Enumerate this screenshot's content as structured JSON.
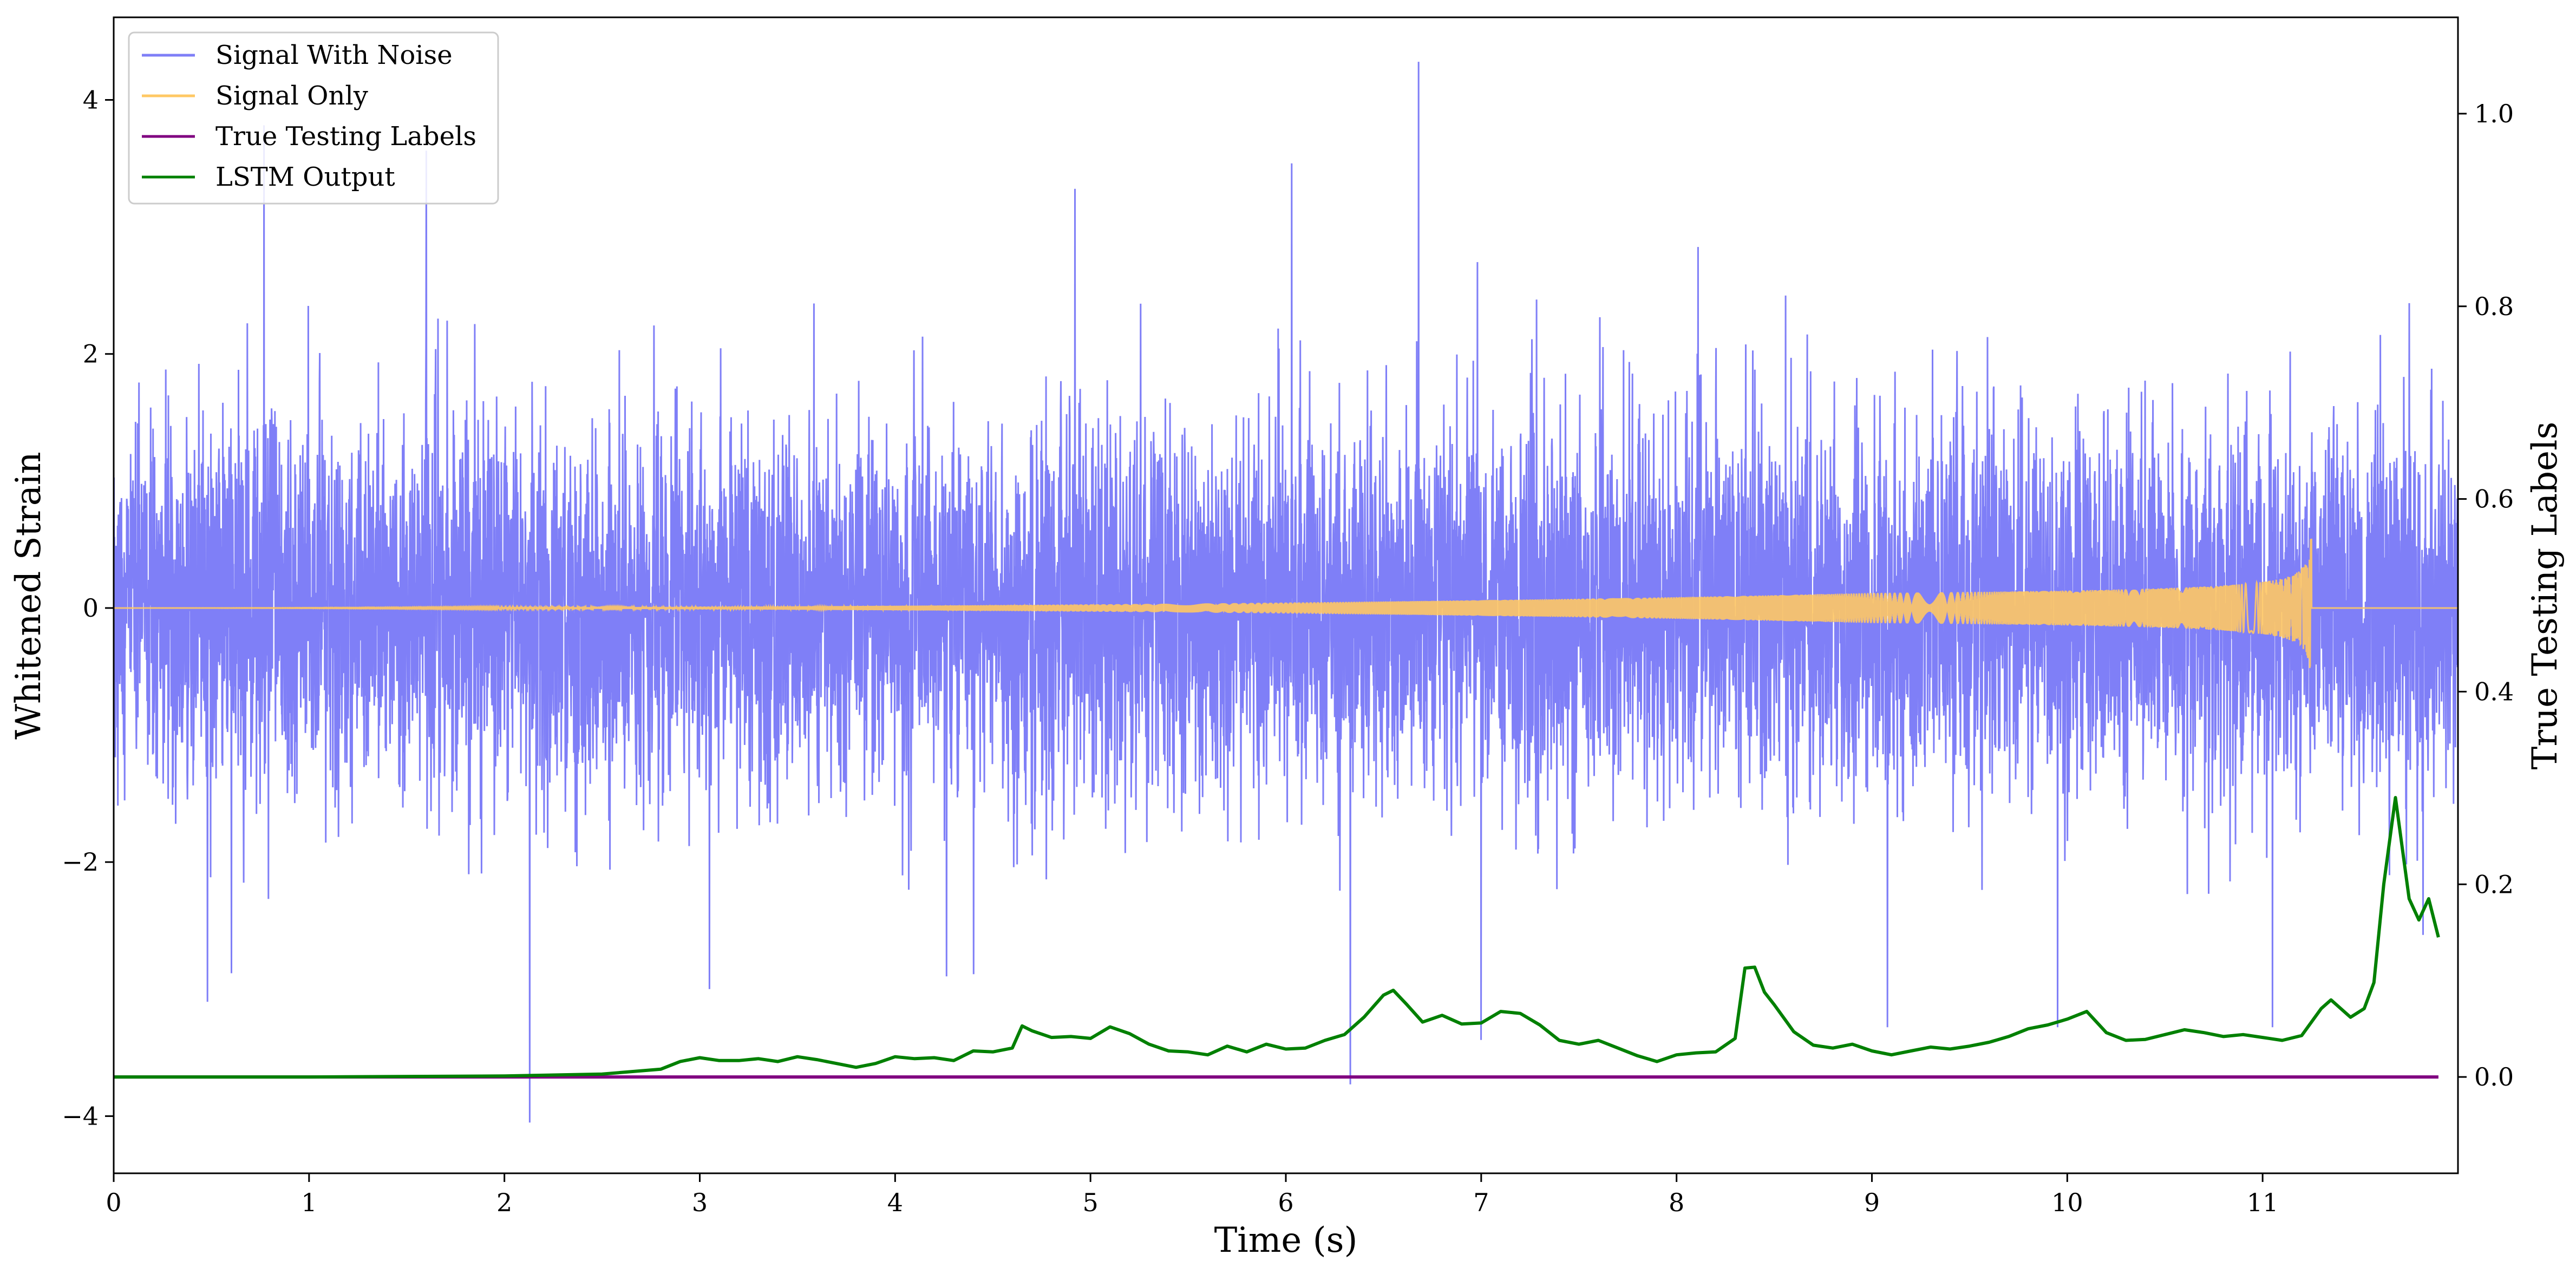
{
  "chart_data": {
    "type": "line",
    "title": "",
    "xlabel": "Time (s)",
    "ylabel": "Whitened Strain",
    "y2label": "True Testing Labels",
    "xlim": [
      0,
      12
    ],
    "ylim": [
      -4.45,
      4.65
    ],
    "y2lim": [
      -0.1,
      1.1
    ],
    "x_ticks": [
      0,
      1,
      2,
      3,
      4,
      5,
      6,
      7,
      8,
      9,
      10,
      11
    ],
    "y_ticks": [
      -4,
      -2,
      0,
      2,
      4
    ],
    "y2_ticks": [
      0.0,
      0.2,
      0.4,
      0.6,
      0.8,
      1.0
    ],
    "y_tick_labels": [
      "−4",
      "−2",
      "0",
      "2",
      "4"
    ],
    "y2_tick_labels": [
      "0.0",
      "0.2",
      "0.4",
      "0.6",
      "0.8",
      "1.0"
    ],
    "x_tick_labels": [
      "0",
      "1",
      "2",
      "3",
      "4",
      "5",
      "6",
      "7",
      "8",
      "9",
      "10",
      "11"
    ],
    "grid": false,
    "legend_position": "top-left",
    "series": [
      {
        "name": "Signal With Noise",
        "axis": "left",
        "color": "#7f7ff7",
        "description_style": "gaussian-noise",
        "typical_band": [
          -1.6,
          1.6
        ],
        "extrema": [
          {
            "x": 0.48,
            "y": -3.1
          },
          {
            "x": 0.77,
            "y": 3.8
          },
          {
            "x": 1.6,
            "y": 3.6
          },
          {
            "x": 2.13,
            "y": -4.05
          },
          {
            "x": 3.05,
            "y": -3.0
          },
          {
            "x": 4.92,
            "y": 3.3
          },
          {
            "x": 6.03,
            "y": 3.5
          },
          {
            "x": 6.33,
            "y": -3.75
          },
          {
            "x": 6.68,
            "y": 4.3
          },
          {
            "x": 7.0,
            "y": -3.4
          },
          {
            "x": 9.08,
            "y": -3.3
          },
          {
            "x": 9.95,
            "y": -3.3
          },
          {
            "x": 11.05,
            "y": -3.3
          },
          {
            "x": 11.75,
            "y": 2.4
          }
        ]
      },
      {
        "name": "Signal Only",
        "axis": "left",
        "color": "#ffc864",
        "chirp_end_time": 11.25,
        "peak_amplitude": 0.58
      },
      {
        "name": "True Testing Labels",
        "axis": "right",
        "color": "#800080",
        "x": [
          0,
          11.9
        ],
        "y": [
          0.0,
          0.0
        ]
      },
      {
        "name": "LSTM Output",
        "axis": "right",
        "color": "#008000",
        "x": [
          0,
          1,
          2,
          2.5,
          2.8,
          2.9,
          3.0,
          3.1,
          3.2,
          3.3,
          3.4,
          3.5,
          3.6,
          3.7,
          3.8,
          3.9,
          4.0,
          4.1,
          4.2,
          4.3,
          4.4,
          4.5,
          4.6,
          4.65,
          4.7,
          4.8,
          4.9,
          5.0,
          5.1,
          5.2,
          5.3,
          5.4,
          5.5,
          5.6,
          5.7,
          5.8,
          5.9,
          6.0,
          6.1,
          6.2,
          6.3,
          6.4,
          6.5,
          6.55,
          6.62,
          6.7,
          6.8,
          6.9,
          7.0,
          7.1,
          7.2,
          7.3,
          7.4,
          7.5,
          7.6,
          7.7,
          7.8,
          7.9,
          8.0,
          8.1,
          8.2,
          8.3,
          8.35,
          8.4,
          8.45,
          8.5,
          8.6,
          8.7,
          8.8,
          8.9,
          9.0,
          9.1,
          9.2,
          9.3,
          9.4,
          9.5,
          9.6,
          9.7,
          9.8,
          9.9,
          10.0,
          10.1,
          10.2,
          10.3,
          10.4,
          10.5,
          10.6,
          10.7,
          10.8,
          10.9,
          11.0,
          11.1,
          11.2,
          11.3,
          11.35,
          11.45,
          11.52,
          11.57,
          11.62,
          11.68,
          11.75,
          11.8,
          11.85,
          11.9
        ],
        "y": [
          0.0,
          0.0,
          0.001,
          0.003,
          0.008,
          0.016,
          0.02,
          0.017,
          0.017,
          0.019,
          0.016,
          0.021,
          0.018,
          0.014,
          0.01,
          0.014,
          0.021,
          0.019,
          0.02,
          0.017,
          0.027,
          0.026,
          0.03,
          0.053,
          0.048,
          0.041,
          0.042,
          0.04,
          0.052,
          0.045,
          0.034,
          0.027,
          0.026,
          0.023,
          0.032,
          0.026,
          0.034,
          0.029,
          0.03,
          0.038,
          0.044,
          0.062,
          0.085,
          0.09,
          0.075,
          0.057,
          0.064,
          0.055,
          0.056,
          0.068,
          0.066,
          0.054,
          0.038,
          0.034,
          0.038,
          0.03,
          0.022,
          0.016,
          0.023,
          0.025,
          0.026,
          0.04,
          0.113,
          0.114,
          0.088,
          0.075,
          0.047,
          0.033,
          0.03,
          0.034,
          0.027,
          0.023,
          0.027,
          0.031,
          0.029,
          0.032,
          0.036,
          0.042,
          0.05,
          0.054,
          0.06,
          0.068,
          0.046,
          0.038,
          0.039,
          0.044,
          0.049,
          0.046,
          0.042,
          0.044,
          0.041,
          0.038,
          0.043,
          0.071,
          0.08,
          0.062,
          0.071,
          0.098,
          0.2,
          0.29,
          0.185,
          0.163,
          0.185,
          0.145
        ]
      }
    ]
  },
  "legend": {
    "items": [
      {
        "label": "Signal With Noise",
        "color": "#7f7ff7"
      },
      {
        "label": "Signal Only",
        "color": "#ffc864"
      },
      {
        "label": "True Testing Labels",
        "color": "#800080"
      },
      {
        "label": "LSTM Output",
        "color": "#008000"
      }
    ]
  }
}
